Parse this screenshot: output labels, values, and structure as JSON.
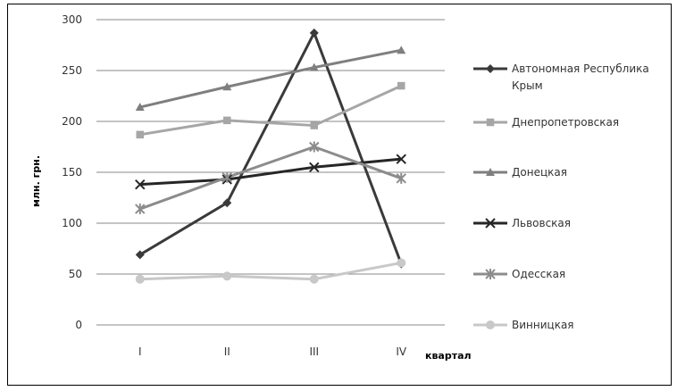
{
  "chart_data": {
    "type": "line",
    "categories": [
      "I",
      "II",
      "III",
      "IV"
    ],
    "ylim": [
      0,
      300
    ],
    "yticks": [
      0,
      50,
      100,
      150,
      200,
      250,
      300
    ],
    "ylabel": "млн. грн.",
    "xlabel": "квартал",
    "grid": true,
    "legend_position": "right",
    "series": [
      {
        "name": "Автономная Республика Крым",
        "name_lines": [
          "Автономная Республика",
          "Крым"
        ],
        "values": [
          69,
          120,
          287,
          60
        ],
        "color": "#3a3a3a",
        "marker": "diamond",
        "width": 3
      },
      {
        "name": "Днепропетровская",
        "name_lines": [
          "Днепропетровская"
        ],
        "values": [
          187,
          201,
          196,
          235
        ],
        "color": "#a6a6a6",
        "marker": "square",
        "width": 3
      },
      {
        "name": "Донецкая",
        "name_lines": [
          "Донецкая"
        ],
        "values": [
          214,
          234,
          253,
          270
        ],
        "color": "#7f7f7f",
        "marker": "triangle",
        "width": 3
      },
      {
        "name": "Львовская",
        "name_lines": [
          "Львовская"
        ],
        "values": [
          138,
          143,
          155,
          163
        ],
        "color": "#262626",
        "marker": "x",
        "width": 3
      },
      {
        "name": "Одесская",
        "name_lines": [
          "Одесская"
        ],
        "values": [
          114,
          145,
          175,
          144
        ],
        "color": "#8c8c8c",
        "marker": "star",
        "width": 3
      },
      {
        "name": "Винницкая",
        "name_lines": [
          "Винницкая"
        ],
        "values": [
          45,
          48,
          45,
          61
        ],
        "color": "#c8c8c8",
        "marker": "circle",
        "width": 3
      }
    ]
  }
}
